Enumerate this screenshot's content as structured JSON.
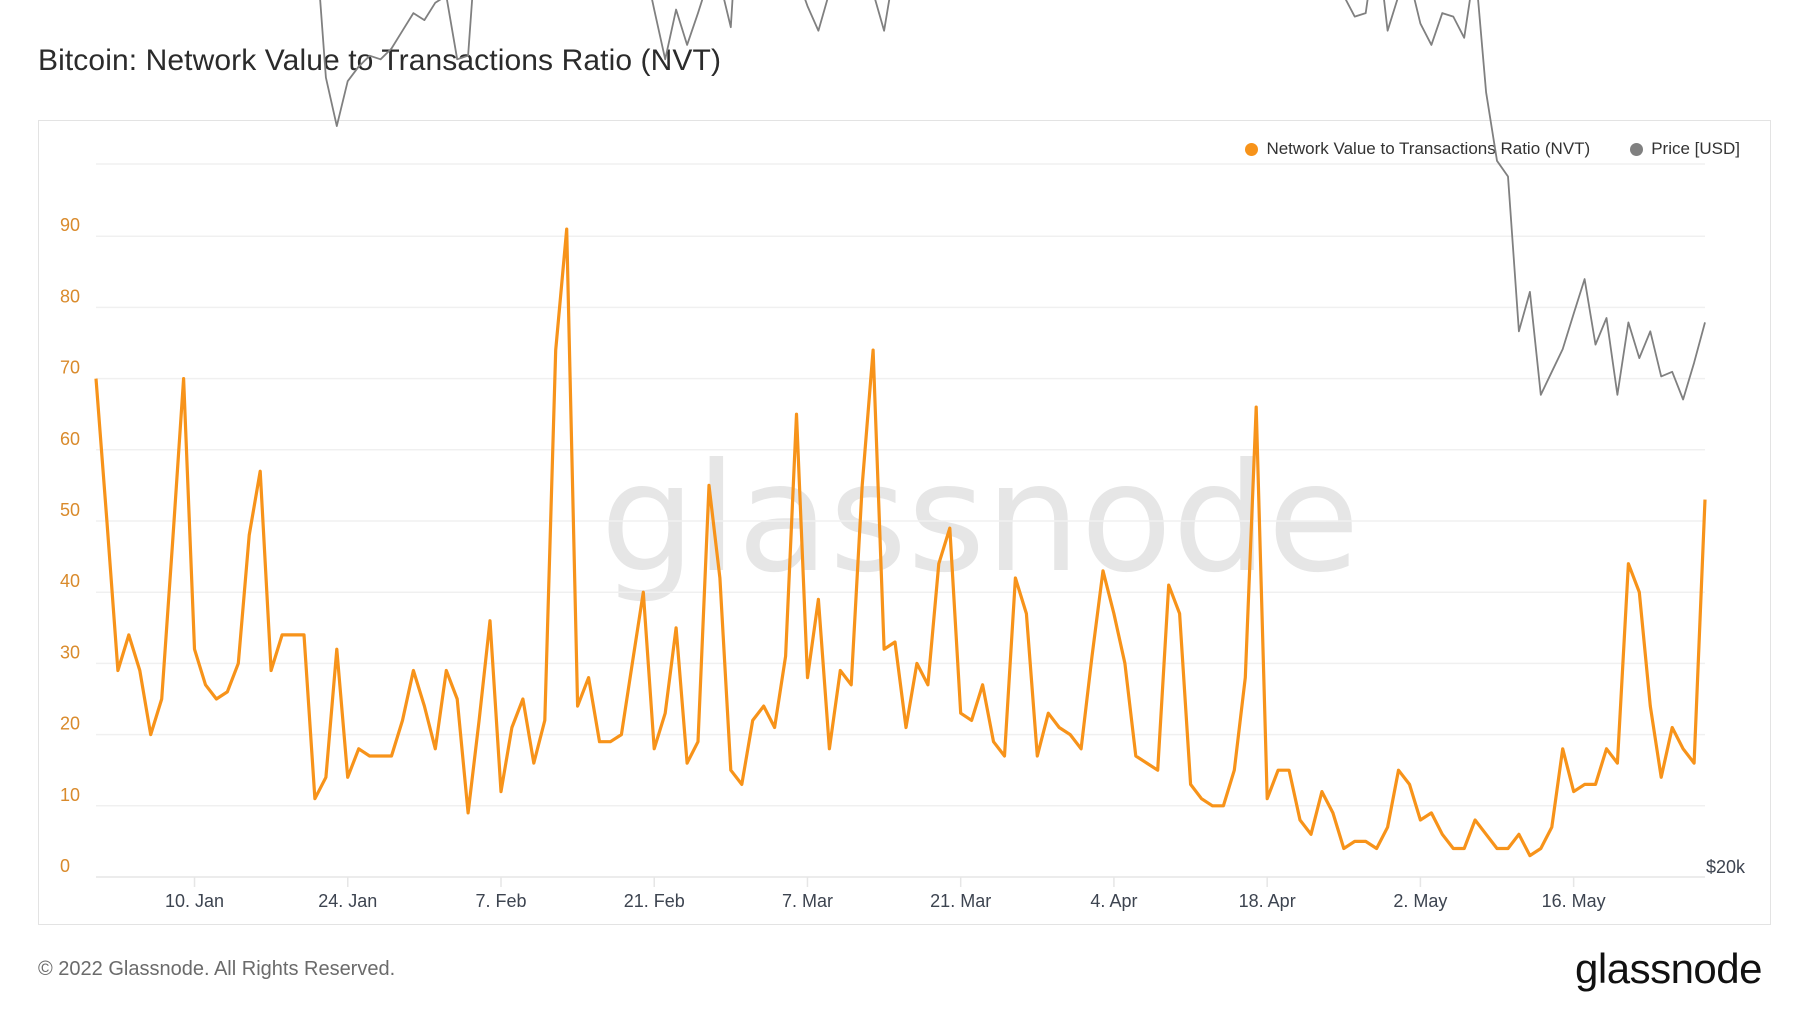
{
  "header": {
    "title": "Bitcoin: Network Value to Transactions Ratio (NVT)"
  },
  "legend": [
    {
      "label": "Network Value to Transactions Ratio (NVT)",
      "color": "#f7931a"
    },
    {
      "label": "Price [USD]",
      "color": "#808080"
    }
  ],
  "watermark": "glassnode",
  "footer": {
    "copyright": "© 2022 Glassnode. All Rights Reserved.",
    "logo": "glassnode"
  },
  "chart_data": {
    "type": "line",
    "title": "Bitcoin: Network Value to Transactions Ratio (NVT)",
    "xlabel": "",
    "ylabel": "",
    "ylim": [
      0,
      95
    ],
    "grid": true,
    "legend_position": "top-right",
    "x_tick_labels": [
      "10. Jan",
      "24. Jan",
      "7. Feb",
      "21. Feb",
      "7. Mar",
      "21. Mar",
      "4. Apr",
      "18. Apr",
      "2. May",
      "16. May"
    ],
    "y_tick_labels": [
      "0",
      "10",
      "20",
      "30",
      "40",
      "50",
      "60",
      "70",
      "80",
      "90"
    ],
    "right_axis_labels": [
      "$20k"
    ],
    "x_start": "2022-01-01",
    "x_step_days": 1,
    "series": [
      {
        "name": "Network Value to Transactions Ratio (NVT)",
        "color": "#f7931a",
        "axis": "left",
        "values": [
          70,
          50,
          29,
          34,
          29,
          20,
          25,
          47,
          70,
          32,
          27,
          25,
          26,
          30,
          48,
          57,
          29,
          34,
          34,
          34,
          11,
          14,
          32,
          14,
          18,
          17,
          17,
          17,
          22,
          29,
          24,
          18,
          29,
          25,
          9,
          22,
          36,
          12,
          21,
          25,
          16,
          22,
          74,
          91,
          24,
          28,
          19,
          19,
          20,
          30,
          40,
          18,
          23,
          35,
          16,
          19,
          55,
          42,
          15,
          13,
          22,
          24,
          21,
          31,
          65,
          28,
          39,
          18,
          29,
          27,
          55,
          74,
          32,
          33,
          21,
          30,
          27,
          44,
          49,
          23,
          22,
          27,
          19,
          17,
          42,
          37,
          17,
          23,
          21,
          20,
          18,
          31,
          43,
          37,
          30,
          17,
          16,
          15,
          41,
          37,
          13,
          11,
          10,
          10,
          15,
          28,
          66,
          11,
          15,
          15,
          8,
          6,
          12,
          9,
          4,
          5,
          5,
          4,
          7,
          15,
          13,
          8,
          9,
          6,
          4,
          4,
          8,
          6,
          4,
          4,
          6,
          3,
          4,
          7,
          18,
          12,
          13,
          13,
          18,
          16,
          44,
          40,
          24,
          14,
          21,
          18,
          16,
          53
        ]
      },
      {
        "name": "Price [USD]",
        "color": "#808080",
        "axis": "right",
        "values": [
          47300,
          47100,
          46400,
          45900,
          43500,
          43100,
          41500,
          41600,
          41800,
          41800,
          41700,
          42700,
          43900,
          42600,
          43100,
          43200,
          43100,
          42200,
          42300,
          41600,
          40700,
          36400,
          35100,
          36300,
          36700,
          37000,
          36900,
          37200,
          37700,
          38200,
          38000,
          38500,
          38700,
          36900,
          37000,
          41500,
          41400,
          42400,
          44000,
          44200,
          44400,
          43500,
          42300,
          42200,
          42300,
          42600,
          44500,
          44000,
          40000,
          39700,
          39800,
          38300,
          36900,
          38300,
          37300,
          38200,
          39200,
          39100,
          37800,
          43200,
          44400,
          43900,
          42100,
          39100,
          39300,
          38400,
          37700,
          38800,
          41900,
          39400,
          38700,
          38800,
          37700,
          39600,
          39400,
          41300,
          41100,
          41800,
          42200,
          41300,
          41000,
          42400,
          43000,
          43900,
          44300,
          44500,
          46800,
          47100,
          47500,
          47100,
          46300,
          45800,
          46400,
          46100,
          46600,
          46700,
          45900,
          43300,
          43200,
          42500,
          42200,
          40400,
          39700,
          40500,
          41500,
          39700,
          40800,
          41500,
          41400,
          40300,
          39300,
          39700,
          39900,
          39500,
          38700,
          38100,
          38200,
          40500,
          37700,
          38700,
          39200,
          37900,
          37300,
          38200,
          38100,
          37500,
          39600,
          36000,
          34200,
          33800,
          30100,
          31000,
          28700,
          29200,
          29700,
          30500,
          31300,
          29800,
          30400,
          28700,
          30300,
          29500,
          30100,
          29100,
          29200,
          28600,
          29400,
          30300
        ]
      }
    ]
  }
}
